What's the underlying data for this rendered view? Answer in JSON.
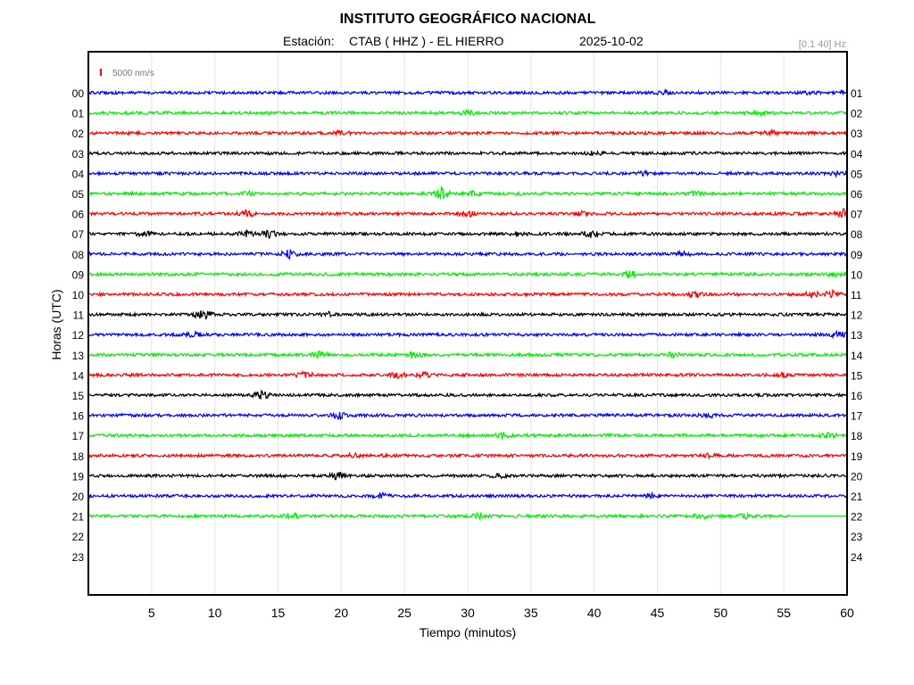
{
  "header": {
    "title": "INSTITUTO GEOGRÁFICO NACIONAL",
    "station_prefix": "Estación:",
    "station": "CTAB ( HHZ ) - EL HIERRO",
    "date": "2025-10-02",
    "band": "[0.1 40] Hz"
  },
  "scale": {
    "label": "5000 nm/s",
    "color": "#ff0000"
  },
  "chart_data": {
    "type": "line",
    "title": "INSTITUTO GEOGRÁFICO NACIONAL",
    "xlabel": "Tiempo (minutos)",
    "ylabel": "Horas (UTC)",
    "xlim": [
      0,
      60
    ],
    "x_ticks": [
      5,
      10,
      15,
      20,
      25,
      30,
      35,
      40,
      45,
      50,
      55,
      60
    ],
    "y_ticks_left": [
      "00",
      "01",
      "02",
      "03",
      "04",
      "05",
      "06",
      "07",
      "08",
      "09",
      "10",
      "11",
      "12",
      "13",
      "14",
      "15",
      "16",
      "17",
      "18",
      "19",
      "20",
      "21",
      "22",
      "23"
    ],
    "y_ticks_right": [
      "01",
      "02",
      "03",
      "04",
      "05",
      "06",
      "07",
      "08",
      "09",
      "10",
      "11",
      "12",
      "13",
      "14",
      "15",
      "16",
      "17",
      "18",
      "19",
      "20",
      "21",
      "22",
      "23",
      "24"
    ],
    "grid": "vertical",
    "color_cycle": [
      "#0000ff",
      "#00ee00",
      "#ff0000",
      "#000000"
    ],
    "series": [
      {
        "hour": "00",
        "color": "#0000ff",
        "end_minute": 60,
        "events": [
          [
            45.5,
            1.3
          ],
          [
            57,
            1.4
          ],
          [
            60,
            1.6
          ]
        ]
      },
      {
        "hour": "01",
        "color": "#00ee00",
        "end_minute": 60,
        "events": [
          [
            30,
            1.4
          ],
          [
            53,
            1.3
          ]
        ]
      },
      {
        "hour": "02",
        "color": "#ff0000",
        "end_minute": 60,
        "events": [
          [
            20,
            1.3
          ],
          [
            54,
            1.3
          ]
        ]
      },
      {
        "hour": "03",
        "color": "#000000",
        "end_minute": 60,
        "events": [
          [
            40,
            1.3
          ]
        ]
      },
      {
        "hour": "04",
        "color": "#0000ff",
        "end_minute": 60,
        "events": [
          [
            44,
            1.3
          ],
          [
            59,
            1.6
          ]
        ]
      },
      {
        "hour": "05",
        "color": "#00ee00",
        "end_minute": 60,
        "events": [
          [
            12.5,
            1.9
          ],
          [
            27.9,
            5
          ],
          [
            30.5,
            1.7
          ],
          [
            48,
            1.4
          ]
        ]
      },
      {
        "hour": "06",
        "color": "#ff0000",
        "end_minute": 60,
        "events": [
          [
            12.5,
            2.2
          ],
          [
            30,
            1.8
          ],
          [
            39,
            1.5
          ],
          [
            59.7,
            3
          ]
        ]
      },
      {
        "hour": "07",
        "color": "#000000",
        "end_minute": 60,
        "events": [
          [
            4.5,
            2
          ],
          [
            12.5,
            1.7
          ],
          [
            14.3,
            2.6
          ],
          [
            34,
            1.6
          ],
          [
            39.7,
            2.3
          ]
        ]
      },
      {
        "hour": "08",
        "color": "#0000ff",
        "end_minute": 60,
        "events": [
          [
            15.9,
            3
          ],
          [
            47,
            1.5
          ]
        ]
      },
      {
        "hour": "09",
        "color": "#00ee00",
        "end_minute": 60,
        "events": [
          [
            42.8,
            2.7
          ],
          [
            59,
            1.4
          ]
        ]
      },
      {
        "hour": "10",
        "color": "#ff0000",
        "end_minute": 60,
        "events": [
          [
            47.9,
            2
          ],
          [
            57.3,
            1.7
          ],
          [
            58.8,
            2.5
          ]
        ]
      },
      {
        "hour": "11",
        "color": "#000000",
        "end_minute": 60,
        "events": [
          [
            9.1,
            4.2
          ],
          [
            19,
            1.4
          ]
        ]
      },
      {
        "hour": "12",
        "color": "#0000ff",
        "end_minute": 60,
        "events": [
          [
            8.3,
            1.5
          ],
          [
            59.2,
            2.8
          ]
        ]
      },
      {
        "hour": "13",
        "color": "#00ee00",
        "end_minute": 60,
        "events": [
          [
            18.4,
            2.2
          ],
          [
            25.7,
            2.2
          ],
          [
            46.2,
            1.5
          ]
        ]
      },
      {
        "hour": "14",
        "color": "#ff0000",
        "end_minute": 60,
        "events": [
          [
            17.1,
            2
          ],
          [
            24.5,
            1.7
          ],
          [
            26.4,
            2.3
          ],
          [
            55,
            1.5
          ]
        ]
      },
      {
        "hour": "15",
        "color": "#000000",
        "end_minute": 60,
        "events": [
          [
            13.7,
            2.8
          ]
        ]
      },
      {
        "hour": "16",
        "color": "#0000ff",
        "end_minute": 60,
        "events": [
          [
            19.8,
            2.2
          ],
          [
            49,
            1.3
          ]
        ]
      },
      {
        "hour": "17",
        "color": "#00ee00",
        "end_minute": 60,
        "events": [
          [
            32.8,
            2
          ],
          [
            58.5,
            1.6
          ]
        ]
      },
      {
        "hour": "18",
        "color": "#ff0000",
        "end_minute": 60,
        "events": [
          [
            21,
            1.3
          ],
          [
            49,
            1.3
          ]
        ]
      },
      {
        "hour": "19",
        "color": "#000000",
        "end_minute": 60,
        "events": [
          [
            19.8,
            2.7
          ],
          [
            32.5,
            1.8
          ]
        ]
      },
      {
        "hour": "20",
        "color": "#0000ff",
        "end_minute": 60,
        "events": [
          [
            23.1,
            2
          ],
          [
            44.5,
            1.5
          ]
        ]
      },
      {
        "hour": "21",
        "color": "#00ee00",
        "end_minute": 55.5,
        "events": [
          [
            16,
            2
          ],
          [
            31,
            1.8
          ],
          [
            48.5,
            1.6
          ],
          [
            52,
            1.4
          ]
        ]
      }
    ]
  }
}
